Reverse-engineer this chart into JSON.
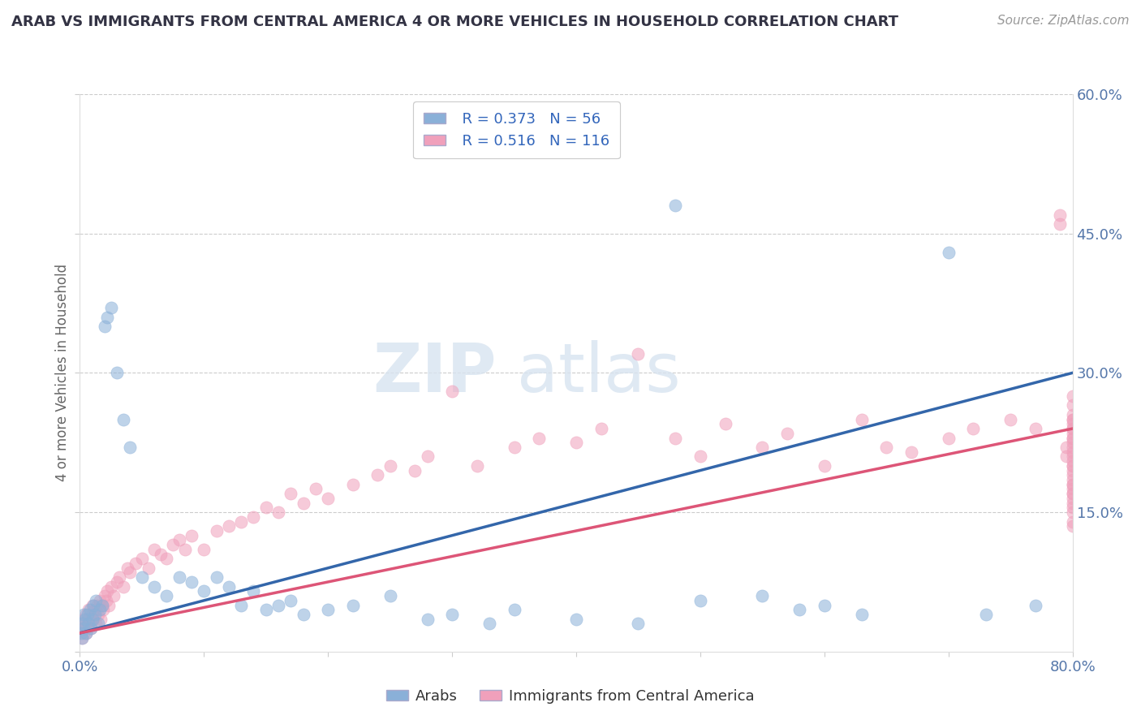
{
  "title": "ARAB VS IMMIGRANTS FROM CENTRAL AMERICA 4 OR MORE VEHICLES IN HOUSEHOLD CORRELATION CHART",
  "source": "Source: ZipAtlas.com",
  "ylabel": "4 or more Vehicles in Household",
  "watermark_zip": "ZIP",
  "watermark_atlas": "atlas",
  "legend_r1": "R = 0.373",
  "legend_n1": "N = 56",
  "legend_r2": "R = 0.516",
  "legend_n2": "N = 116",
  "blue_color": "#8ab0d8",
  "pink_color": "#f0a0bb",
  "blue_line_color": "#3366aa",
  "pink_line_color": "#dd5577",
  "title_color": "#333344",
  "source_color": "#999999",
  "tick_color": "#5577aa",
  "ylabel_color": "#666666",
  "grid_color": "#cccccc",
  "xlim": [
    0,
    80
  ],
  "ylim": [
    0,
    60
  ],
  "yticks": [
    0,
    15,
    30,
    45,
    60
  ],
  "xtick_labels": [
    "0.0%",
    "",
    "",
    "",
    "",
    "",
    "",
    "",
    "80.0%"
  ],
  "ytick_labels": [
    "",
    "15.0%",
    "30.0%",
    "45.0%",
    "60.0%"
  ],
  "arab_x": [
    0.1,
    0.2,
    0.2,
    0.3,
    0.3,
    0.4,
    0.5,
    0.6,
    0.7,
    0.8,
    0.9,
    1.0,
    1.1,
    1.2,
    1.3,
    1.5,
    1.6,
    1.8,
    2.0,
    2.2,
    2.5,
    3.0,
    3.5,
    4.0,
    5.0,
    6.0,
    7.0,
    8.0,
    9.0,
    10.0,
    11.0,
    12.0,
    13.0,
    14.0,
    15.0,
    16.0,
    17.0,
    18.0,
    20.0,
    22.0,
    25.0,
    28.0,
    30.0,
    33.0,
    35.0,
    40.0,
    45.0,
    48.0,
    50.0,
    55.0,
    58.0,
    60.0,
    63.0,
    70.0,
    73.0,
    77.0
  ],
  "arab_y": [
    2.0,
    3.0,
    1.5,
    4.0,
    2.5,
    3.5,
    2.0,
    4.0,
    3.0,
    4.5,
    2.5,
    3.5,
    5.0,
    4.0,
    5.5,
    3.0,
    4.5,
    5.0,
    35.0,
    36.0,
    37.0,
    30.0,
    25.0,
    22.0,
    8.0,
    7.0,
    6.0,
    8.0,
    7.5,
    6.5,
    8.0,
    7.0,
    5.0,
    6.5,
    4.5,
    5.0,
    5.5,
    4.0,
    4.5,
    5.0,
    6.0,
    3.5,
    4.0,
    3.0,
    4.5,
    3.5,
    3.0,
    48.0,
    5.5,
    6.0,
    4.5,
    5.0,
    4.0,
    43.0,
    4.0,
    5.0
  ],
  "imm_x": [
    0.1,
    0.2,
    0.2,
    0.3,
    0.3,
    0.4,
    0.5,
    0.5,
    0.6,
    0.7,
    0.8,
    0.9,
    1.0,
    1.0,
    1.1,
    1.2,
    1.3,
    1.4,
    1.5,
    1.6,
    1.7,
    1.8,
    1.9,
    2.0,
    2.1,
    2.2,
    2.3,
    2.5,
    2.7,
    3.0,
    3.2,
    3.5,
    3.8,
    4.0,
    4.5,
    5.0,
    5.5,
    6.0,
    6.5,
    7.0,
    7.5,
    8.0,
    8.5,
    9.0,
    10.0,
    11.0,
    12.0,
    13.0,
    14.0,
    15.0,
    16.0,
    17.0,
    18.0,
    19.0,
    20.0,
    22.0,
    24.0,
    25.0,
    27.0,
    28.0,
    30.0,
    32.0,
    35.0,
    37.0,
    40.0,
    42.0,
    45.0,
    48.0,
    50.0,
    52.0,
    55.0,
    57.0,
    60.0,
    63.0,
    65.0,
    67.0,
    70.0,
    72.0,
    75.0,
    77.0,
    79.0,
    79.0,
    79.5,
    79.5,
    80.0,
    80.0,
    80.0,
    80.0,
    80.0,
    80.0,
    80.0,
    80.0,
    80.0,
    80.0,
    80.0,
    80.0,
    80.0,
    80.0,
    80.0,
    80.0,
    80.0,
    80.0,
    80.0,
    80.0,
    80.0,
    80.0,
    80.0,
    80.0,
    80.0,
    80.0,
    80.0,
    80.0,
    80.0,
    80.0,
    80.0,
    80.0
  ],
  "imm_y": [
    2.5,
    3.0,
    1.5,
    2.0,
    3.5,
    2.5,
    4.0,
    2.0,
    3.5,
    4.5,
    3.0,
    2.5,
    4.0,
    5.0,
    3.5,
    4.5,
    3.0,
    5.0,
    4.0,
    5.5,
    3.5,
    5.0,
    4.5,
    6.0,
    5.5,
    6.5,
    5.0,
    7.0,
    6.0,
    7.5,
    8.0,
    7.0,
    9.0,
    8.5,
    9.5,
    10.0,
    9.0,
    11.0,
    10.5,
    10.0,
    11.5,
    12.0,
    11.0,
    12.5,
    11.0,
    13.0,
    13.5,
    14.0,
    14.5,
    15.5,
    15.0,
    17.0,
    16.0,
    17.5,
    16.5,
    18.0,
    19.0,
    20.0,
    19.5,
    21.0,
    28.0,
    20.0,
    22.0,
    23.0,
    22.5,
    24.0,
    32.0,
    23.0,
    21.0,
    24.5,
    22.0,
    23.5,
    20.0,
    25.0,
    22.0,
    21.5,
    23.0,
    24.0,
    25.0,
    24.0,
    47.0,
    46.0,
    22.0,
    21.0,
    20.0,
    21.5,
    22.5,
    23.5,
    24.5,
    25.5,
    26.5,
    27.5,
    23.0,
    24.0,
    25.0,
    20.5,
    21.0,
    22.0,
    23.0,
    24.0,
    25.0,
    18.0,
    19.0,
    20.0,
    17.0,
    18.5,
    19.5,
    16.0,
    17.5,
    18.0,
    15.0,
    16.5,
    17.0,
    14.0,
    15.5,
    13.5
  ]
}
